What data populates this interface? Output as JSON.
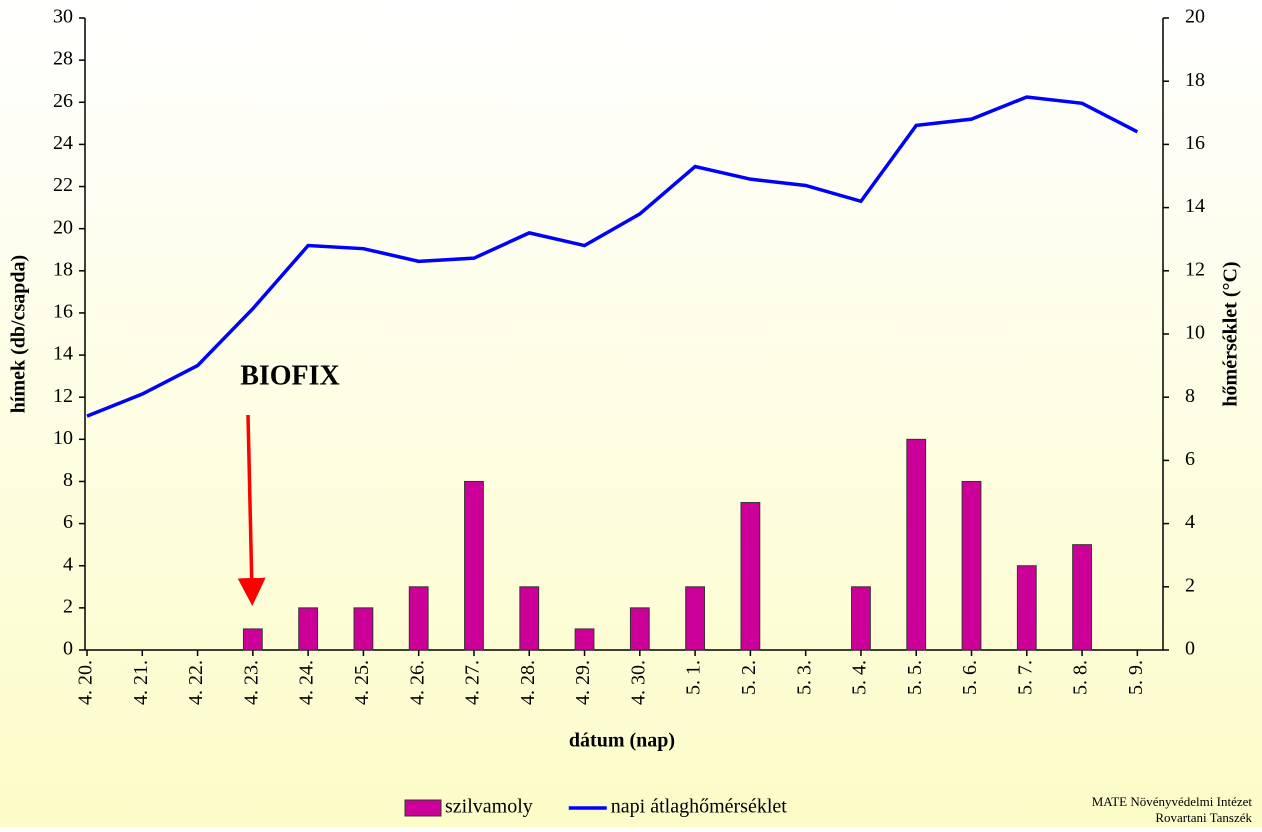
{
  "chart_data": {
    "type": "bar",
    "x_label": "dátum (nap)",
    "y_label": "hímek  (db/csapda)",
    "y2_label": "hőmérséklet (°C)",
    "categories": [
      "4. 20.",
      "4. 21.",
      "4. 22.",
      "4. 23.",
      "4. 24.",
      "4. 25.",
      "4. 26.",
      "4. 27.",
      "4. 28.",
      "4. 29.",
      "4. 30.",
      "5. 1.",
      "5. 2.",
      "5. 3.",
      "5. 4.",
      "5. 5.",
      "5. 6.",
      "5. 7.",
      "5. 8.",
      "5. 9."
    ],
    "series": [
      {
        "name": "szilvamoly",
        "color": "#cc0099",
        "values": [
          0,
          0,
          0,
          1,
          2,
          2,
          3,
          8,
          3,
          1,
          2,
          3,
          7,
          0,
          3,
          10,
          8,
          4,
          5,
          0
        ]
      },
      {
        "name": "napi átlaghőmérséklet",
        "type": "line",
        "axis": "y2",
        "color": "#0000ff",
        "values": [
          7.4,
          8.1,
          9.0,
          10.8,
          12.8,
          12.7,
          12.3,
          12.4,
          13.2,
          12.8,
          13.8,
          15.3,
          14.9,
          14.7,
          14.2,
          16.6,
          16.8,
          17.5,
          17.3,
          16.4
        ]
      }
    ],
    "ylim": [
      0,
      30
    ],
    "yticks": [
      0,
      2,
      4,
      6,
      8,
      10,
      12,
      14,
      16,
      18,
      20,
      22,
      24,
      26,
      28,
      30
    ],
    "y2lim": [
      0,
      20
    ],
    "y2ticks": [
      0,
      2,
      4,
      6,
      8,
      10,
      12,
      14,
      16,
      18,
      20
    ],
    "annotations": [
      {
        "text": "BIOFIX",
        "color": "#ff0000"
      }
    ],
    "legend": "bottom"
  },
  "footer": [
    "MATE Növényvédelmi Intézet",
    "Rovartani Tanszék"
  ]
}
